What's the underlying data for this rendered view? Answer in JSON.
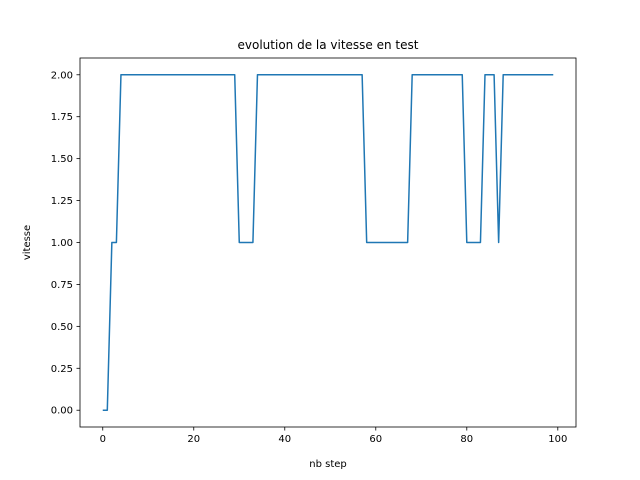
{
  "chart_data": {
    "type": "line",
    "title": "evolution de la vitesse en test",
    "xlabel": "nb step",
    "ylabel": "vitesse",
    "xlim": [
      -5,
      104
    ],
    "ylim": [
      -0.1,
      2.1
    ],
    "grid": false,
    "x_ticks": [
      0,
      20,
      40,
      60,
      80,
      100
    ],
    "y_ticks": [
      0.0,
      0.25,
      0.5,
      0.75,
      1.0,
      1.25,
      1.5,
      1.75,
      2.0
    ],
    "x_tick_labels": [
      "0",
      "20",
      "40",
      "60",
      "80",
      "100"
    ],
    "y_tick_labels": [
      "0.00",
      "0.25",
      "0.50",
      "0.75",
      "1.00",
      "1.25",
      "1.50",
      "1.75",
      "2.00"
    ],
    "series": [
      {
        "color": "#1f77b4",
        "x": [
          0,
          1,
          2,
          3,
          4,
          5,
          6,
          7,
          8,
          9,
          10,
          11,
          12,
          13,
          14,
          15,
          16,
          17,
          18,
          19,
          20,
          21,
          22,
          23,
          24,
          25,
          26,
          27,
          28,
          29,
          30,
          31,
          32,
          33,
          34,
          35,
          36,
          37,
          38,
          39,
          40,
          41,
          42,
          43,
          44,
          45,
          46,
          47,
          48,
          49,
          50,
          51,
          52,
          53,
          54,
          55,
          56,
          57,
          58,
          59,
          60,
          61,
          62,
          63,
          64,
          65,
          66,
          67,
          68,
          69,
          70,
          71,
          72,
          73,
          74,
          75,
          76,
          77,
          78,
          79,
          80,
          81,
          82,
          83,
          84,
          85,
          86,
          87,
          88,
          89,
          90,
          91,
          92,
          93,
          94,
          95,
          96,
          97,
          98,
          99
        ],
        "values": [
          0,
          0,
          1,
          1,
          2,
          2,
          2,
          2,
          2,
          2,
          2,
          2,
          2,
          2,
          2,
          2,
          2,
          2,
          2,
          2,
          2,
          2,
          2,
          2,
          2,
          2,
          2,
          2,
          2,
          2,
          1,
          1,
          1,
          1,
          2,
          2,
          2,
          2,
          2,
          2,
          2,
          2,
          2,
          2,
          2,
          2,
          2,
          2,
          2,
          2,
          2,
          2,
          2,
          2,
          2,
          2,
          2,
          2,
          1,
          1,
          1,
          1,
          1,
          1,
          1,
          1,
          1,
          1,
          2,
          2,
          2,
          2,
          2,
          2,
          2,
          2,
          2,
          2,
          2,
          2,
          1,
          1,
          1,
          1,
          2,
          2,
          2,
          1,
          2,
          2,
          2,
          2,
          2,
          2,
          2,
          2,
          2,
          2,
          2,
          2
        ]
      }
    ]
  }
}
